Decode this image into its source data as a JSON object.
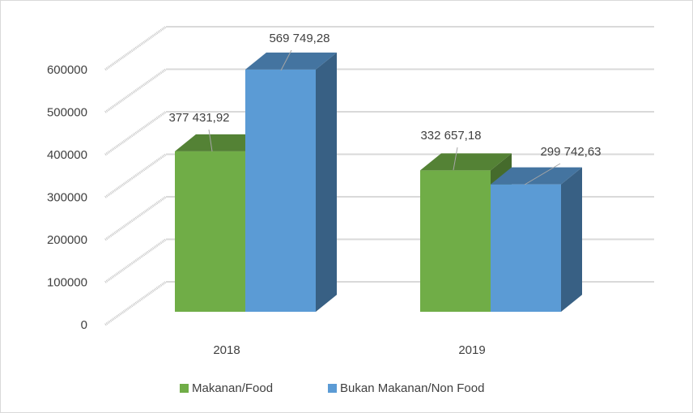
{
  "chart_data": {
    "type": "bar3d",
    "categories": [
      "2018",
      "2019"
    ],
    "series": [
      {
        "name": "Makanan/Food",
        "color": "#70ad47",
        "values": [
          377431.92,
          332657.18
        ],
        "value_labels": [
          "377 431,92",
          "332 657,18"
        ]
      },
      {
        "name": "Bukan Makanan/Non Food",
        "color": "#5b9bd5",
        "values": [
          569749.28,
          299742.63
        ],
        "value_labels": [
          "569 749,28",
          "299 742,63"
        ]
      }
    ],
    "ylim": [
      0,
      600000
    ],
    "yticks": [
      0,
      100000,
      200000,
      300000,
      400000,
      500000,
      600000
    ],
    "grid": true,
    "legend": "bottom"
  }
}
